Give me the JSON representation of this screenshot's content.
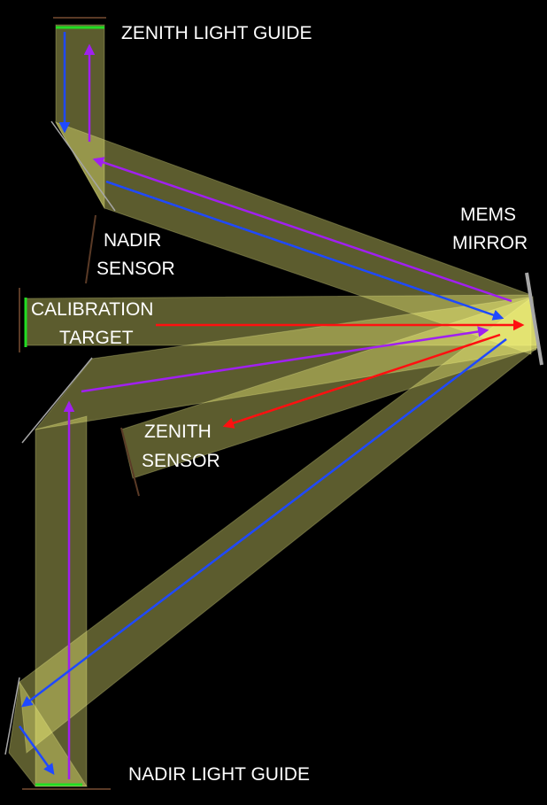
{
  "labels": {
    "zenith_light_guide": "ZENITH LIGHT GUIDE",
    "nadir_sensor_line1": "NADIR",
    "nadir_sensor_line2": "SENSOR",
    "mems_mirror_line1": "MEMS",
    "mems_mirror_line2": "MIRROR",
    "calibration_target_line1": "CALIBRATION",
    "calibration_target_line2": "TARGET",
    "zenith_sensor_line1": "ZENITH",
    "zenith_sensor_line2": "SENSOR",
    "nadir_light_guide": "NADIR LIGHT GUIDE"
  },
  "colors": {
    "background": "#000000",
    "beam_fill": "#ffff80",
    "beam_outline": "#ffffa0",
    "mirror": "#a6a6a6",
    "sensor": "#5a3a26",
    "calibration_green": "#22dd22",
    "arrow_blue": "#1f49ff",
    "arrow_purple": "#a020f0",
    "arrow_red": "#ff1010",
    "text": "#ffffff"
  }
}
